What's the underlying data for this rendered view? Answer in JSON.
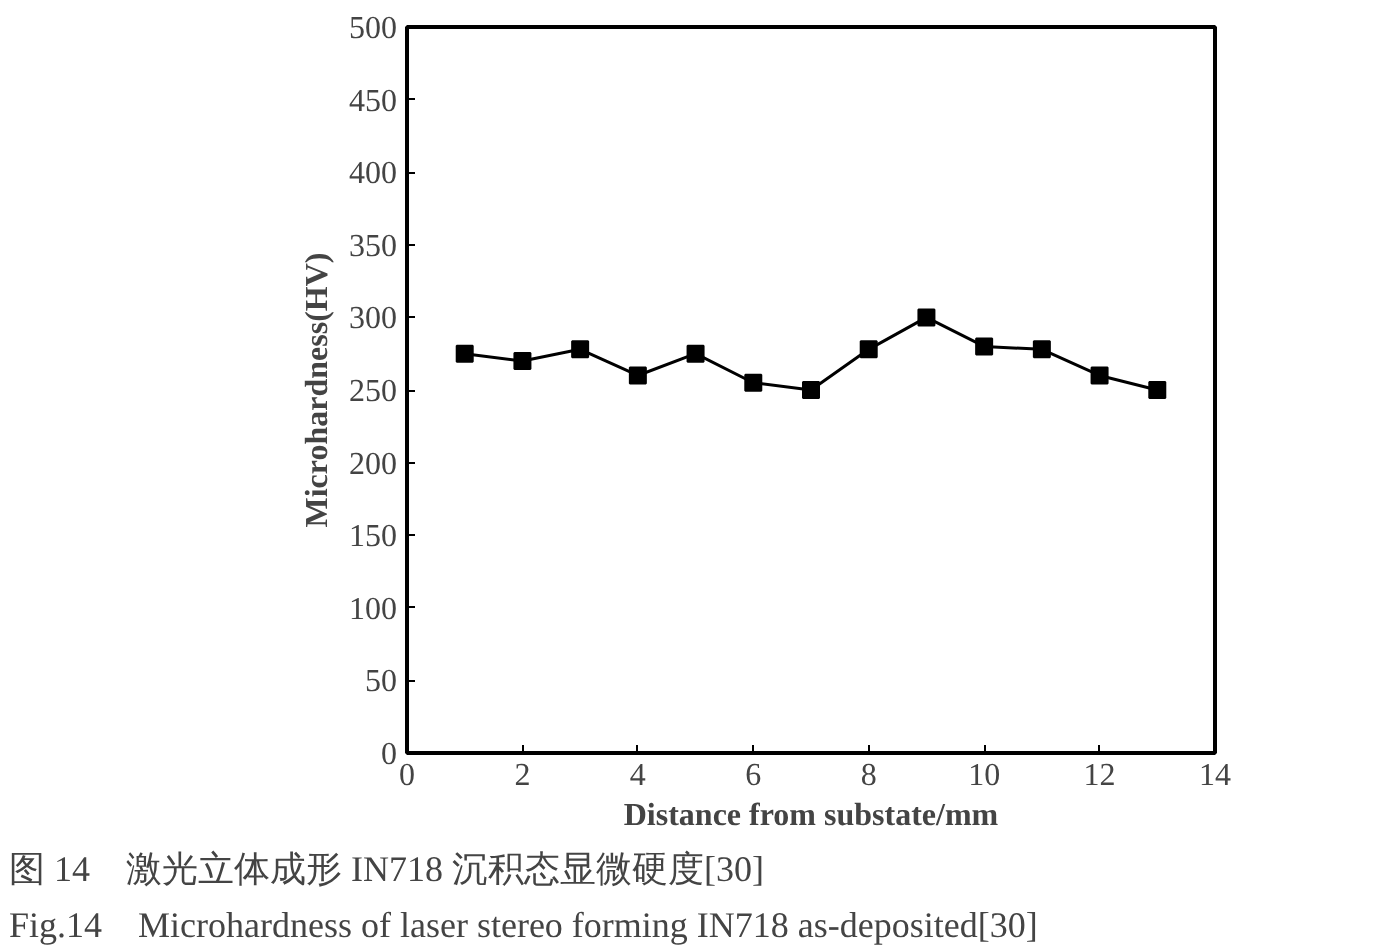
{
  "chart_data": {
    "type": "line",
    "xlabel": "Distance from substate/mm",
    "ylabel": "Microhardness(HV)",
    "x": [
      1,
      2,
      3,
      4,
      5,
      6,
      7,
      8,
      9,
      10,
      11,
      12,
      13
    ],
    "series": [
      {
        "color": "#000000",
        "values": [
          275,
          270,
          278,
          260,
          275,
          255,
          250,
          278,
          300,
          280,
          278,
          260,
          250
        ]
      }
    ],
    "xlim": [
      0,
      14
    ],
    "xticks": [
      0,
      2,
      4,
      6,
      8,
      10,
      12,
      14
    ],
    "ylim": [
      0,
      500
    ],
    "yticks": [
      0,
      50,
      100,
      150,
      200,
      250,
      300,
      350,
      400,
      450,
      500
    ],
    "marker": "square",
    "line_style": "solid",
    "grid": false,
    "annotations": [
      "图 14　激光立体成形 IN718 沉积态显微硬度[30]",
      "Fig.14　Microhardness of laser stereo forming IN718 as-deposited[30]"
    ]
  }
}
